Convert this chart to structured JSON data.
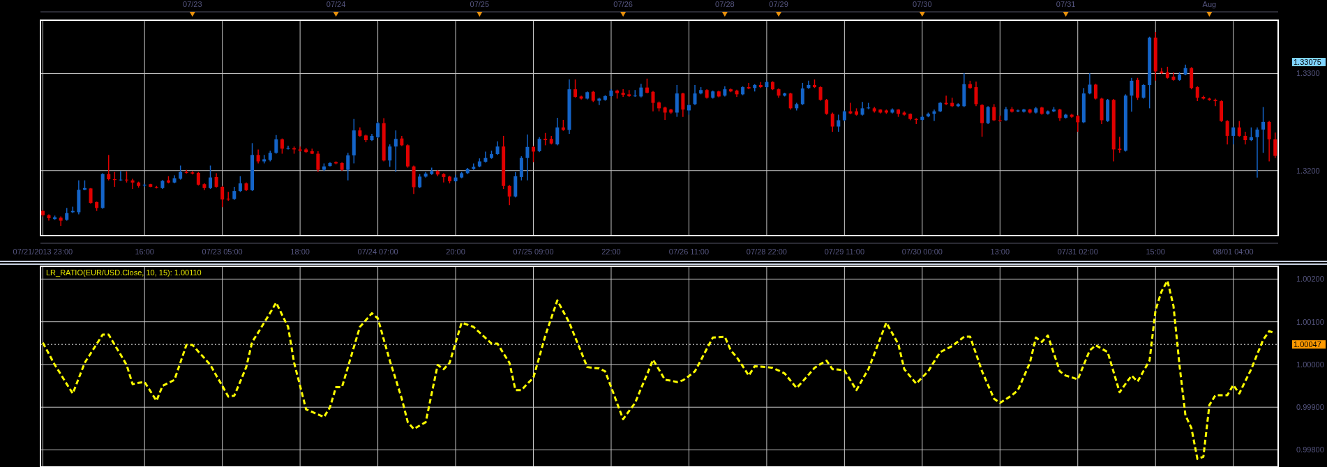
{
  "chart_data": [
    {
      "type": "other",
      "categories": [
        null,
        null,
        null,
        null,
        null,
        null,
        null,
        null,
        null,
        null,
        null,
        null,
        null,
        null,
        null,
        null,
        null,
        null,
        null,
        null,
        null,
        null,
        null,
        null,
        null,
        "07/23",
        null,
        null,
        null,
        null,
        null,
        null,
        null,
        null,
        null,
        null,
        null,
        null,
        null,
        null,
        null,
        null,
        null,
        null,
        null,
        null,
        null,
        null,
        null,
        "07/24",
        null,
        null,
        null,
        null,
        null,
        null,
        null,
        null,
        null,
        null,
        null,
        null,
        null,
        null,
        null,
        null,
        null,
        null,
        null,
        null,
        null,
        null,
        null,
        "07/25",
        null,
        null,
        null,
        null,
        null,
        null,
        null,
        null,
        null,
        null,
        null,
        null,
        null,
        null,
        null,
        null,
        null,
        null,
        null,
        null,
        null,
        null,
        null,
        "07/26",
        null,
        null,
        null,
        null,
        null,
        null,
        null,
        null,
        null,
        null,
        null,
        null,
        null,
        null,
        null,
        null,
        "07/28",
        null,
        null,
        null,
        null,
        null,
        null,
        null,
        null,
        "07/29",
        null,
        null,
        null,
        null,
        null,
        null,
        null,
        null,
        null,
        null,
        null,
        null,
        null,
        null,
        null,
        null,
        null,
        null,
        null,
        null,
        null,
        null,
        null,
        "07/30",
        null,
        null,
        null,
        null,
        null,
        null,
        null,
        null,
        null,
        null,
        null,
        null,
        null,
        null,
        null,
        null,
        null,
        null,
        null,
        null,
        null,
        null,
        null,
        "07/31",
        null,
        null,
        null,
        null,
        null,
        null,
        null,
        null,
        null,
        null,
        null,
        null,
        null,
        null,
        null,
        null,
        null,
        null,
        null,
        null,
        null,
        null,
        null,
        "Aug",
        null,
        null,
        null,
        null,
        null,
        null,
        null,
        null,
        null,
        null,
        null
      ]
    },
    {
      "type": "candlestick",
      "grid": true,
      "categories": [
        "07/21/2013 23:00",
        null,
        null,
        null,
        null,
        null,
        null,
        null,
        null,
        null,
        null,
        null,
        null,
        null,
        null,
        null,
        null,
        "16:00",
        null,
        null,
        null,
        null,
        null,
        null,
        null,
        null,
        null,
        null,
        null,
        null,
        "07/23 05:00",
        null,
        null,
        null,
        null,
        null,
        null,
        null,
        null,
        null,
        null,
        null,
        null,
        "18:00",
        null,
        null,
        null,
        null,
        null,
        null,
        null,
        null,
        null,
        null,
        null,
        null,
        "07/24 07:00",
        null,
        null,
        null,
        null,
        null,
        null,
        null,
        null,
        null,
        null,
        null,
        null,
        "20:00",
        null,
        null,
        null,
        null,
        null,
        null,
        null,
        null,
        null,
        null,
        null,
        null,
        "07/25 09:00",
        null,
        null,
        null,
        null,
        null,
        null,
        null,
        null,
        null,
        null,
        null,
        null,
        "22:00",
        null,
        null,
        null,
        null,
        null,
        null,
        null,
        null,
        null,
        null,
        null,
        null,
        "07/26 11:00",
        null,
        null,
        null,
        null,
        null,
        null,
        null,
        null,
        null,
        null,
        null,
        null,
        "07/28 22:00",
        null,
        null,
        null,
        null,
        null,
        null,
        null,
        null,
        null,
        null,
        null,
        null,
        "07/29 11:00",
        null,
        null,
        null,
        null,
        null,
        null,
        null,
        null,
        null,
        null,
        null,
        null,
        "07/30 00:00",
        null,
        null,
        null,
        null,
        null,
        null,
        null,
        null,
        null,
        null,
        null,
        null,
        "13:00",
        null,
        null,
        null,
        null,
        null,
        null,
        null,
        null,
        null,
        null,
        null,
        null,
        "07/31 02:00",
        null,
        null,
        null,
        null,
        null,
        null,
        null,
        null,
        null,
        null,
        null,
        null,
        "15:00",
        null,
        null,
        null,
        null,
        null,
        null,
        null,
        null,
        null,
        null,
        null,
        null,
        "08/01 04:00",
        null,
        null,
        null,
        null,
        null,
        null,
        null
      ],
      "ylim": [
        1.3133,
        1.3355
      ],
      "yticks": [
        {
          "value": 1.32,
          "label": "1.3200"
        },
        {
          "value": 1.33,
          "label": "1.3300"
        }
      ],
      "annotations": [
        "1.33075"
      ],
      "colors": [
        "#e00000",
        "#e00000",
        "#1464c8",
        "#e00000",
        "#1464c8",
        "#1464c8",
        "#1464c8",
        "#1464c8",
        "#e00000",
        "#e00000",
        "#1464c8",
        "#e00000",
        "#e00000",
        "#1464c8",
        "#e00000",
        "#e00000",
        "#e00000",
        "#1464c8",
        "#e00000",
        "#e00000",
        "#1464c8",
        "#e00000",
        "#1464c8",
        "#1464c8",
        "#e00000",
        "#e00000",
        "#e00000",
        "#e00000",
        "#1464c8",
        "#e00000",
        "#e00000",
        "#e00000",
        "#1464c8",
        "#1464c8",
        "#e00000",
        "#1464c8",
        "#e00000",
        "#1464c8",
        "#1464c8",
        "#1464c8",
        "#e00000",
        "#1464c8",
        "#e00000",
        "#e00000",
        "#e00000",
        "#e00000",
        "#e00000",
        "#1464c8",
        "#1464c8",
        "#e00000",
        "#e00000",
        "#1464c8",
        "#1464c8",
        "#e00000",
        "#e00000",
        "#1464c8",
        "#1464c8",
        "#e00000",
        "#1464c8",
        "#1464c8",
        "#e00000",
        "#e00000",
        "#e00000",
        "#1464c8",
        "#1464c8",
        "#1464c8",
        "#e00000",
        "#e00000",
        "#e00000",
        "#1464c8",
        "#1464c8",
        "#1464c8",
        "#1464c8",
        "#1464c8",
        "#1464c8",
        "#1464c8",
        "#1464c8",
        "#e00000",
        "#e00000",
        "#1464c8",
        "#1464c8",
        "#1464c8",
        "#e00000",
        "#1464c8",
        "#e00000",
        "#e00000",
        "#1464c8",
        "#e00000",
        "#1464c8",
        "#e00000",
        "#e00000",
        "#1464c8",
        "#e00000",
        "#1464c8",
        "#1464c8",
        "#1464c8",
        "#e00000",
        "#e00000",
        "#e00000",
        "#1464c8",
        "#1464c8",
        "#e00000",
        "#e00000",
        "#e00000",
        "#e00000",
        "#e00000",
        "#1464c8",
        "#e00000",
        "#1464c8",
        "#1464c8",
        "#1464c8",
        "#e00000",
        "#1464c8",
        "#e00000",
        "#1464c8",
        "#e00000",
        "#e00000",
        "#1464c8",
        "#e00000",
        "#1464c8",
        "#e00000",
        "#1464c8",
        "#e00000",
        "#e00000",
        "#1464c8",
        "#e00000",
        "#1464c8",
        "#1464c8",
        "#1464c8",
        "#e00000",
        "#e00000",
        "#e00000",
        "#e00000",
        "#1464c8",
        "#1464c8",
        "#e00000",
        "#e00000",
        "#1464c8",
        "#1464c8",
        "#e00000",
        "#e00000",
        "#e00000",
        "#1464c8",
        "#e00000",
        "#e00000",
        "#e00000",
        "#e00000",
        "#1464c8",
        "#1464c8",
        "#1464c8",
        "#1464c8",
        "#e00000",
        "#e00000",
        "#1464c8",
        "#1464c8",
        "#e00000",
        "#e00000",
        "#e00000",
        "#1464c8",
        "#e00000",
        "#e00000",
        "#1464c8",
        "#e00000",
        "#1464c8",
        "#1464c8",
        "#e00000",
        "#1464c8",
        "#e00000",
        "#1464c8",
        "#1464c8",
        "#e00000",
        "#1464c8",
        "#e00000",
        "#e00000",
        "#1464c8",
        "#1464c8",
        "#e00000",
        "#e00000",
        "#1464c8",
        "#e00000",
        "#e00000",
        "#1464c8",
        "#1464c8",
        "#e00000",
        "#1464c8",
        "#1464c8",
        "#e00000",
        "#e00000",
        "#e00000",
        "#e00000",
        "#1464c8",
        "#1464c8",
        "#e00000",
        "#e00000",
        "#e00000",
        "#e00000",
        "#e00000",
        "#e00000",
        "#e00000",
        "#1464c8",
        "#e00000",
        "#e00000",
        "#1464c8",
        "#1464c8",
        "#1464c8",
        "#e00000",
        "#e00000"
      ],
      "ohlc": [
        [
          1.31584,
          1.31593,
          1.31527,
          1.3154
        ],
        [
          1.3154,
          1.31549,
          1.31484,
          1.3151
        ],
        [
          1.31501,
          1.31536,
          1.31492,
          1.31519
        ],
        [
          1.31514,
          1.31527,
          1.31431,
          1.31484
        ],
        [
          1.31492,
          1.31615,
          1.31484,
          1.31562
        ],
        [
          1.31571,
          1.31628,
          1.31562,
          1.31584
        ],
        [
          1.31571,
          1.31899,
          1.31549,
          1.31802
        ],
        [
          1.31802,
          1.31899,
          1.31798,
          1.3182
        ],
        [
          1.31816,
          1.3182,
          1.31658,
          1.31667
        ],
        [
          1.31676,
          1.3168,
          1.31584,
          1.31615
        ],
        [
          1.31615,
          1.31973,
          1.31606,
          1.31964
        ],
        [
          1.31964,
          1.32161,
          1.31899,
          1.31912
        ],
        [
          1.31912,
          1.31986,
          1.31833,
          1.31903
        ],
        [
          1.31903,
          1.31995,
          1.31894,
          1.31907
        ],
        [
          1.31907,
          1.31991,
          1.31877,
          1.31899
        ],
        [
          1.31899,
          1.31916,
          1.31811,
          1.31877
        ],
        [
          1.31877,
          1.31886,
          1.31824,
          1.31842
        ],
        [
          1.31846,
          1.31864,
          1.31833,
          1.31855
        ],
        [
          1.3186,
          1.31864,
          1.31829,
          1.31833
        ],
        [
          1.31833,
          1.31842,
          1.31816,
          1.31824
        ],
        [
          1.3182,
          1.31903,
          1.31811,
          1.31894
        ],
        [
          1.31899,
          1.31942,
          1.31868,
          1.31877
        ],
        [
          1.31877,
          1.31951,
          1.31868,
          1.31921
        ],
        [
          1.31916,
          1.32052,
          1.31907,
          1.31986
        ],
        [
          1.31986,
          1.32008,
          1.31969,
          1.31977
        ],
        [
          1.31982,
          1.31995,
          1.3196,
          1.31969
        ],
        [
          1.31977,
          1.31986,
          1.31846,
          1.31855
        ],
        [
          1.3186,
          1.31868,
          1.31798,
          1.3182
        ],
        [
          1.3182,
          1.32052,
          1.31811,
          1.31929
        ],
        [
          1.31934,
          1.31973,
          1.31824,
          1.31833
        ],
        [
          1.31833,
          1.31842,
          1.31623,
          1.31702
        ],
        [
          1.31711,
          1.3178,
          1.31689,
          1.31702
        ],
        [
          1.31707,
          1.31833,
          1.31698,
          1.31789
        ],
        [
          1.31789,
          1.31942,
          1.3178,
          1.31868
        ],
        [
          1.31868,
          1.31877,
          1.31789,
          1.31798
        ],
        [
          1.31798,
          1.32283,
          1.31789,
          1.32161
        ],
        [
          1.32161,
          1.32218,
          1.32074,
          1.32095
        ],
        [
          1.32095,
          1.32161,
          1.32074,
          1.32117
        ],
        [
          1.32109,
          1.32205,
          1.32095,
          1.32183
        ],
        [
          1.32183,
          1.32366,
          1.32174,
          1.32322
        ],
        [
          1.32322,
          1.32331,
          1.32174,
          1.32226
        ],
        [
          1.32226,
          1.32257,
          1.32218,
          1.32235
        ],
        [
          1.32231,
          1.32248,
          1.32174,
          1.32218
        ],
        [
          1.32218,
          1.32248,
          1.32196,
          1.32205
        ],
        [
          1.32218,
          1.32235,
          1.32183,
          1.32191
        ],
        [
          1.322,
          1.32226,
          1.3217,
          1.32174
        ],
        [
          1.32174,
          1.322,
          1.31986,
          1.32008
        ],
        [
          1.32008,
          1.32074,
          1.31995,
          1.32043
        ],
        [
          1.32047,
          1.32087,
          1.32043,
          1.32078
        ],
        [
          1.32087,
          1.32095,
          1.32065,
          1.32074
        ],
        [
          1.32078,
          1.32087,
          1.31999,
          1.32008
        ],
        [
          1.32008,
          1.32183,
          1.31899,
          1.32157
        ],
        [
          1.32157,
          1.32532,
          1.32074,
          1.32414
        ],
        [
          1.32414,
          1.32445,
          1.32349,
          1.32358
        ],
        [
          1.32362,
          1.32371,
          1.32292,
          1.32314
        ],
        [
          1.32314,
          1.32379,
          1.32305,
          1.32358
        ],
        [
          1.32344,
          1.32502,
          1.32336,
          1.32489
        ],
        [
          1.32489,
          1.32541,
          1.32095,
          1.32104
        ],
        [
          1.32104,
          1.3227,
          1.32039,
          1.32248
        ],
        [
          1.32248,
          1.32414,
          1.31986,
          1.32327
        ],
        [
          1.32331,
          1.32358,
          1.32253,
          1.32261
        ],
        [
          1.32261,
          1.3227,
          1.3203,
          1.32043
        ],
        [
          1.32043,
          1.32052,
          1.31759,
          1.31829
        ],
        [
          1.31829,
          1.31964,
          1.3182,
          1.31938
        ],
        [
          1.31938,
          1.31986,
          1.31929,
          1.31969
        ],
        [
          1.31964,
          1.3203,
          1.31956,
          1.31995
        ],
        [
          1.31995,
          1.32004,
          1.31942,
          1.3196
        ],
        [
          1.31964,
          1.31973,
          1.31877,
          1.31934
        ],
        [
          1.31938,
          1.31947,
          1.31868,
          1.3189
        ],
        [
          1.3189,
          1.31956,
          1.31881,
          1.31929
        ],
        [
          1.31929,
          1.31986,
          1.31921,
          1.31973
        ],
        [
          1.31973,
          1.32026,
          1.31964,
          1.32017
        ],
        [
          1.32017,
          1.32074,
          1.32008,
          1.32039
        ],
        [
          1.32043,
          1.32126,
          1.32034,
          1.32095
        ],
        [
          1.32091,
          1.32196,
          1.32082,
          1.3213
        ],
        [
          1.3213,
          1.32205,
          1.32122,
          1.3217
        ],
        [
          1.3217,
          1.32301,
          1.32161,
          1.32248
        ],
        [
          1.32248,
          1.32358,
          1.31811,
          1.31842
        ],
        [
          1.31842,
          1.31851,
          1.31645,
          1.31733
        ],
        [
          1.31733,
          1.31986,
          1.31724,
          1.31942
        ],
        [
          1.31934,
          1.32148,
          1.31899,
          1.3213
        ],
        [
          1.3213,
          1.32371,
          1.31899,
          1.32244
        ],
        [
          1.32244,
          1.32253,
          1.32087,
          1.32196
        ],
        [
          1.322,
          1.32344,
          1.32191,
          1.32327
        ],
        [
          1.32327,
          1.32388,
          1.32261,
          1.32314
        ],
        [
          1.32327,
          1.32358,
          1.3227,
          1.32279
        ],
        [
          1.3227,
          1.32545,
          1.32261,
          1.32445
        ],
        [
          1.32445,
          1.32523,
          1.3241,
          1.32419
        ],
        [
          1.32419,
          1.32939,
          1.32379,
          1.32838
        ],
        [
          1.32838,
          1.32939,
          1.32751,
          1.3276
        ],
        [
          1.32764,
          1.32773,
          1.32733,
          1.32742
        ],
        [
          1.32742,
          1.32816,
          1.32733,
          1.32808
        ],
        [
          1.32812,
          1.32821,
          1.32707,
          1.3272
        ],
        [
          1.3272,
          1.32751,
          1.32676,
          1.32742
        ],
        [
          1.32729,
          1.32777,
          1.3272,
          1.32768
        ],
        [
          1.32768,
          1.32838,
          1.3276,
          1.32825
        ],
        [
          1.32825,
          1.32834,
          1.32742,
          1.32799
        ],
        [
          1.32803,
          1.32838,
          1.3276,
          1.32781
        ],
        [
          1.32786,
          1.3283,
          1.3276,
          1.32768
        ],
        [
          1.32768,
          1.3283,
          1.3276,
          1.32773
        ],
        [
          1.32764,
          1.32895,
          1.32755,
          1.32856
        ],
        [
          1.32856,
          1.32948,
          1.32795,
          1.32803
        ],
        [
          1.32812,
          1.32821,
          1.32611,
          1.32698
        ],
        [
          1.32702,
          1.32712,
          1.32611,
          1.32642
        ],
        [
          1.3265,
          1.32659,
          1.32523,
          1.32598
        ],
        [
          1.32629,
          1.32637,
          1.32585,
          1.32598
        ],
        [
          1.32598,
          1.32882,
          1.32554,
          1.32795
        ],
        [
          1.32795,
          1.32803,
          1.32554,
          1.32629
        ],
        [
          1.3262,
          1.32685,
          1.32576,
          1.32676
        ],
        [
          1.32685,
          1.32882,
          1.32676,
          1.32795
        ],
        [
          1.32795,
          1.3286,
          1.32786,
          1.3283
        ],
        [
          1.3283,
          1.32838,
          1.32742,
          1.32751
        ],
        [
          1.32751,
          1.32825,
          1.32742,
          1.32816
        ],
        [
          1.32816,
          1.32825,
          1.32755,
          1.32764
        ],
        [
          1.32773,
          1.32869,
          1.32764,
          1.32838
        ],
        [
          1.32838,
          1.32847,
          1.32808,
          1.32816
        ],
        [
          1.32825,
          1.32834,
          1.3276,
          1.32786
        ],
        [
          1.32786,
          1.32869,
          1.32777,
          1.3286
        ],
        [
          1.3286,
          1.32904,
          1.32838,
          1.32847
        ],
        [
          1.32851,
          1.32891,
          1.32816,
          1.32882
        ],
        [
          1.32882,
          1.32913,
          1.32851,
          1.3286
        ],
        [
          1.3286,
          1.32926,
          1.32851,
          1.32913
        ],
        [
          1.32913,
          1.32921,
          1.3283,
          1.32838
        ],
        [
          1.32838,
          1.32847,
          1.32751,
          1.32773
        ],
        [
          1.32773,
          1.32803,
          1.32764,
          1.32795
        ],
        [
          1.32795,
          1.32803,
          1.32629,
          1.32642
        ],
        [
          1.32642,
          1.32698,
          1.3262,
          1.32685
        ],
        [
          1.32685,
          1.32904,
          1.32676,
          1.32847
        ],
        [
          1.32851,
          1.32926,
          1.32843,
          1.32882
        ],
        [
          1.32882,
          1.32939,
          1.32851,
          1.3286
        ],
        [
          1.3286,
          1.32869,
          1.3272,
          1.32729
        ],
        [
          1.32729,
          1.32738,
          1.32576,
          1.32585
        ],
        [
          1.32585,
          1.32598,
          1.32401,
          1.32454
        ],
        [
          1.32454,
          1.32576,
          1.32401,
          1.32519
        ],
        [
          1.32519,
          1.3262,
          1.32511,
          1.32611
        ],
        [
          1.32611,
          1.32698,
          1.3258,
          1.32589
        ],
        [
          1.32611,
          1.32642,
          1.32567,
          1.32576
        ],
        [
          1.32576,
          1.32707,
          1.32567,
          1.32642
        ],
        [
          1.32642,
          1.32698,
          1.32633,
          1.3265
        ],
        [
          1.32642,
          1.32655,
          1.32598,
          1.32611
        ],
        [
          1.32629,
          1.32633,
          1.32589,
          1.32598
        ],
        [
          1.3262,
          1.32629,
          1.32585,
          1.32598
        ],
        [
          1.32598,
          1.32642,
          1.32589,
          1.32629
        ],
        [
          1.32629,
          1.32633,
          1.32554,
          1.32585
        ],
        [
          1.32598,
          1.32611,
          1.32567,
          1.32576
        ],
        [
          1.32585,
          1.32589,
          1.32519,
          1.32532
        ],
        [
          1.32532,
          1.32541,
          1.3248,
          1.32523
        ],
        [
          1.32523,
          1.32567,
          1.32515,
          1.32554
        ],
        [
          1.32559,
          1.32598,
          1.3255,
          1.32585
        ],
        [
          1.32585,
          1.32629,
          1.32511,
          1.32611
        ],
        [
          1.32611,
          1.32707,
          1.32602,
          1.32698
        ],
        [
          1.32698,
          1.32773,
          1.32676,
          1.32685
        ],
        [
          1.32698,
          1.32751,
          1.32655,
          1.32664
        ],
        [
          1.32664,
          1.32694,
          1.32655,
          1.32685
        ],
        [
          1.32664,
          1.33004,
          1.32655,
          1.32891
        ],
        [
          1.32891,
          1.32926,
          1.32843,
          1.32851
        ],
        [
          1.3286,
          1.32917,
          1.32664,
          1.32685
        ],
        [
          1.32676,
          1.32685,
          1.32349,
          1.32489
        ],
        [
          1.32489,
          1.32664,
          1.3248,
          1.32655
        ],
        [
          1.32655,
          1.32685,
          1.32511,
          1.32519
        ],
        [
          1.32519,
          1.32567,
          1.32502,
          1.32511
        ],
        [
          1.32519,
          1.32655,
          1.32511,
          1.32633
        ],
        [
          1.32633,
          1.32655,
          1.32598,
          1.32607
        ],
        [
          1.32611,
          1.32629,
          1.32602,
          1.3262
        ],
        [
          1.32607,
          1.32637,
          1.32598,
          1.32629
        ],
        [
          1.32629,
          1.32637,
          1.32589,
          1.32598
        ],
        [
          1.32598,
          1.32655,
          1.32589,
          1.32642
        ],
        [
          1.3265,
          1.32659,
          1.32576,
          1.32585
        ],
        [
          1.32585,
          1.3262,
          1.32576,
          1.32611
        ],
        [
          1.32611,
          1.32655,
          1.32602,
          1.32629
        ],
        [
          1.32629,
          1.32637,
          1.32511,
          1.32541
        ],
        [
          1.32545,
          1.32585,
          1.32537,
          1.32576
        ],
        [
          1.32576,
          1.32585,
          1.32545,
          1.32554
        ],
        [
          1.32563,
          1.32572,
          1.32401,
          1.32498
        ],
        [
          1.32498,
          1.32851,
          1.32489,
          1.32795
        ],
        [
          1.32795,
          1.33004,
          1.32786,
          1.32886
        ],
        [
          1.32886,
          1.32895,
          1.32733,
          1.32742
        ],
        [
          1.32742,
          1.32751,
          1.3248,
          1.32519
        ],
        [
          1.32511,
          1.32738,
          1.32502,
          1.32729
        ],
        [
          1.32729,
          1.32738,
          1.32095,
          1.32218
        ],
        [
          1.32226,
          1.32349,
          1.32183,
          1.32213
        ],
        [
          1.32205,
          1.32786,
          1.32196,
          1.32773
        ],
        [
          1.32773,
          1.32956,
          1.32607,
          1.32926
        ],
        [
          1.32934,
          1.32956,
          1.32729,
          1.32751
        ],
        [
          1.32751,
          1.32891,
          1.32742,
          1.32882
        ],
        [
          1.32882,
          1.3338,
          1.32642,
          1.33371
        ],
        [
          1.33371,
          1.33428,
          1.32926,
          1.33022
        ],
        [
          1.33022,
          1.33057,
          1.32996,
          1.33004
        ],
        [
          1.33013,
          1.3307,
          1.32948,
          1.32956
        ],
        [
          1.32969,
          1.33013,
          1.32926,
          1.32934
        ],
        [
          1.32934,
          1.33013,
          1.32926,
          1.32991
        ],
        [
          1.32991,
          1.33092,
          1.32983,
          1.33057
        ],
        [
          1.33057,
          1.33066,
          1.32838,
          1.32851
        ],
        [
          1.3286,
          1.32869,
          1.32716,
          1.32751
        ],
        [
          1.3276,
          1.32773,
          1.32733,
          1.32742
        ],
        [
          1.32742,
          1.32751,
          1.3272,
          1.32729
        ],
        [
          1.32729,
          1.32742,
          1.32664,
          1.32716
        ],
        [
          1.32716,
          1.32725,
          1.32502,
          1.32511
        ],
        [
          1.32511,
          1.32519,
          1.3227,
          1.32358
        ],
        [
          1.32358,
          1.32454,
          1.3227,
          1.32445
        ],
        [
          1.32445,
          1.32511,
          1.32349,
          1.32358
        ],
        [
          1.32358,
          1.32401,
          1.3227,
          1.32314
        ],
        [
          1.32314,
          1.32445,
          1.32305,
          1.32344
        ],
        [
          1.32344,
          1.32445,
          1.31929,
          1.32423
        ],
        [
          1.32423,
          1.32655,
          1.32183,
          1.32502
        ],
        [
          1.32502,
          1.32511,
          1.32095,
          1.32322
        ],
        [
          1.32322,
          1.32392,
          1.3213,
          1.32152
        ]
      ]
    },
    {
      "type": "line",
      "title": "LR_RATIO(EUR/USD.Close, 10, 15): 1.00110",
      "grid": true,
      "tick_labels": "y",
      "line_style": "dashed",
      "categories": [
        null,
        null,
        null,
        null,
        null,
        null,
        null,
        null,
        null,
        null,
        null,
        null,
        null,
        null,
        null,
        null,
        null,
        null,
        null,
        null,
        null,
        null,
        null,
        null,
        null,
        null,
        null,
        null,
        null,
        null,
        null,
        null,
        null,
        null,
        null,
        null,
        null,
        null,
        null,
        null,
        null,
        null,
        null,
        null,
        null,
        null,
        null,
        null,
        null,
        null,
        null,
        null,
        null,
        null,
        null,
        null,
        null,
        null,
        null,
        null,
        null,
        null,
        null,
        null,
        null,
        null,
        null,
        null,
        null,
        null,
        null,
        null,
        null,
        null,
        null,
        null,
        null,
        null,
        null,
        null,
        null,
        null,
        null,
        null,
        null,
        null,
        null,
        null,
        null,
        null,
        null,
        null,
        null,
        null,
        null,
        null,
        null,
        null,
        null,
        null,
        null,
        null,
        null,
        null,
        null,
        null,
        null,
        null,
        null,
        null,
        null,
        null,
        null,
        null,
        null,
        null,
        null,
        null,
        null,
        null,
        null,
        null,
        null,
        null,
        null,
        null,
        null,
        null,
        null,
        null,
        null,
        null,
        null,
        null,
        null,
        null,
        null,
        null,
        null,
        null,
        null,
        null,
        null,
        null,
        null,
        null,
        null,
        null,
        null,
        null,
        null,
        null,
        null,
        null,
        null,
        null,
        null,
        null,
        null,
        null,
        null,
        null,
        null,
        null,
        null,
        null,
        null,
        null,
        null,
        null,
        null,
        null,
        null,
        null,
        null,
        null,
        null,
        null,
        null,
        null,
        null,
        null,
        null,
        null,
        null,
        null,
        null,
        null,
        null,
        null,
        null,
        null,
        null,
        null,
        null,
        null,
        null,
        null,
        null,
        null,
        null,
        null,
        null,
        null,
        null,
        null,
        null
      ],
      "ylim": [
        0.9976,
        1.0023
      ],
      "yticks": [
        {
          "value": 0.998,
          "label": "0.99800"
        },
        {
          "value": 0.999,
          "label": "0.99900"
        },
        {
          "value": 1,
          "label": "1.00000"
        },
        {
          "value": 1.001,
          "label": "1.00100"
        },
        {
          "value": 1.002,
          "label": "1.00200"
        }
      ],
      "ref_lines": [
        {
          "axis": "y",
          "value": 1.00047,
          "label": "1.00047",
          "line_style": "dotted"
        }
      ],
      "series": [
        {
          "color": "#ffff00",
          "values": [
            1.00051,
            1.00025,
            0.99999,
            0.99977,
            0.99954,
            0.99932,
            0.99968,
            1.00004,
            1.00026,
            1.00048,
            1.0007,
            1.0007,
            1.00046,
            1.00023,
            0.99999,
            0.99954,
            0.99957,
            0.99959,
            0.99937,
            0.99915,
            0.9995,
            0.99957,
            0.99964,
            1.00005,
            1.00046,
            1.00046,
            1.0003,
            1.00015,
            0.99999,
            0.99974,
            0.9995,
            0.99925,
            0.99927,
            0.9996,
            0.99994,
            1.00053,
            1.00075,
            1.00098,
            1.00121,
            1.00145,
            1.00116,
            1.00088,
            1.00004,
            0.9995,
            0.99895,
            0.99889,
            0.99883,
            0.99877,
            0.999,
            0.99947,
            0.99947,
            0.99994,
            1.00041,
            1.00088,
            1.00104,
            1.0012,
            1.00108,
            1.00058,
            1.00009,
            0.99965,
            0.9992,
            0.99865,
            0.99849,
            0.99857,
            0.99865,
            0.99932,
            0.99999,
            0.99989,
            1.00004,
            1.00051,
            1.00098,
            1.00093,
            1.00088,
            1.00075,
            1.00062,
            1.00049,
            1.00049,
            1.00026,
            1.00004,
            0.9994,
            0.9994,
            0.99955,
            0.99969,
            1.00018,
            1.00068,
            1.00109,
            1.0015,
            1.00124,
            1.00098,
            1.00063,
            1.00029,
            0.99994,
            0.99992,
            0.99991,
            0.99984,
            0.99947,
            0.99909,
            0.99872,
            0.99891,
            0.9991,
            0.99944,
            0.99977,
            1.00011,
            0.99988,
            0.99964,
            0.99962,
            0.99959,
            0.99963,
            0.99973,
            0.99984,
            1.0001,
            1.00037,
            1.00063,
            1.00064,
            1.00065,
            1.00033,
            1.00017,
            0.99996,
            0.99974,
            0.99996,
            0.99995,
            0.99994,
            0.99992,
            0.99986,
            0.99979,
            0.99962,
            0.99945,
            0.9996,
            0.99976,
            0.99992,
            1.00001,
            1.00009,
            0.99989,
            0.99988,
            0.99986,
            0.99963,
            0.9994,
            0.99965,
            0.99989,
            1.00025,
            1.00062,
            1.00098,
            1.00073,
            1.00048,
            0.99989,
            0.99972,
            0.99955,
            0.9997,
            0.99984,
            1.00007,
            1.00029,
            1.00036,
            1.00043,
            1.00054,
            1.00065,
            1.00065,
            1.00025,
            0.99984,
            0.99952,
            0.9992,
            0.9991,
            0.99919,
            0.99928,
            0.9994,
            0.99972,
            1.00004,
            1.00063,
            1.00053,
            1.00068,
            1.00026,
            0.99984,
            0.99974,
            0.9997,
            0.99965,
            0.99999,
            1.00033,
            1.00045,
            1.00037,
            1.00029,
            0.99982,
            0.99935,
            0.99955,
            0.99974,
            0.9996,
            0.99985,
            1.00009,
            1.00127,
            1.00171,
            1.00196,
            1.00137,
            0.99999,
            0.99881,
            0.99851,
            0.99779,
            0.99784,
            0.99905,
            0.99928,
            0.99928,
            0.99928,
            0.99952,
            0.99932,
            0.99961,
            0.99989,
            1.00024,
            1.00058,
            1.00078,
            1.00073
          ]
        }
      ]
    }
  ]
}
